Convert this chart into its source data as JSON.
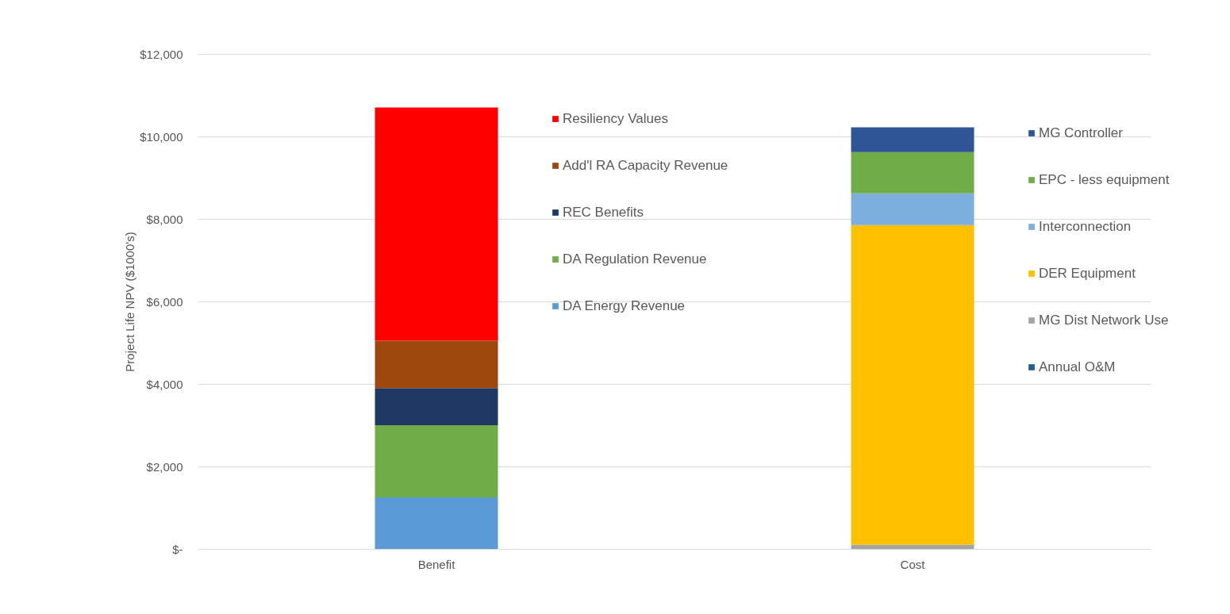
{
  "chart_data": {
    "type": "bar",
    "stacked": true,
    "ylabel": "Project Life NPV ($1000's)",
    "categories": [
      "Benefit",
      "Cost"
    ],
    "series": [
      {
        "name": "DA Energy Revenue",
        "color": "#5b9bd5",
        "values": [
          1250,
          null
        ]
      },
      {
        "name": "DA Regulation Revenue",
        "color": "#70ad47",
        "values": [
          1750,
          null
        ]
      },
      {
        "name": "REC Benefits",
        "color": "#203864",
        "values": [
          900,
          null
        ]
      },
      {
        "name": "Add'l RA Capacity Revenue",
        "color": "#9e480e",
        "values": [
          1150,
          null
        ]
      },
      {
        "name": "Resiliency Values",
        "color": "#ff0000",
        "values": [
          5650,
          null
        ]
      },
      {
        "name": "Annual O&M",
        "color": "#255e91",
        "values": [
          null,
          0
        ]
      },
      {
        "name": "MG Dist Network Use",
        "color": "#a5a5a5",
        "values": [
          null,
          100
        ]
      },
      {
        "name": "DER Equipment",
        "color": "#ffc000",
        "values": [
          null,
          7750
        ]
      },
      {
        "name": "Interconnection",
        "color": "#7cafdd",
        "values": [
          null,
          770
        ]
      },
      {
        "name": "EPC - less equipment",
        "color": "#70ad47",
        "values": [
          null,
          1000
        ]
      },
      {
        "name": "MG Controller",
        "color": "#2f5597",
        "values": [
          null,
          600
        ]
      }
    ],
    "ylim": [
      0,
      12000
    ],
    "yticks": [
      {
        "value": 0,
        "label": "$-"
      },
      {
        "value": 2000,
        "label": "$2,000"
      },
      {
        "value": 4000,
        "label": "$4,000"
      },
      {
        "value": 6000,
        "label": "$6,000"
      },
      {
        "value": 8000,
        "label": "$8,000"
      },
      {
        "value": 10000,
        "label": "$10,000"
      },
      {
        "value": 12000,
        "label": "$12,000"
      }
    ],
    "grid": "y",
    "legend": "right"
  }
}
